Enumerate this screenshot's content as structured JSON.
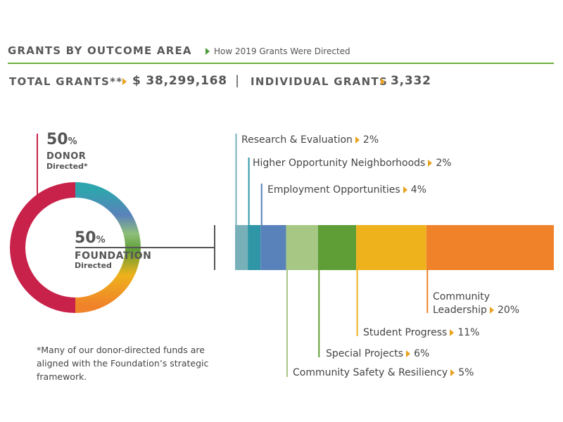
{
  "header": {
    "title": "GRANTS BY OUTCOME AREA",
    "subtitle": "How 2019 Grants Were Directed"
  },
  "totals": {
    "total_label": "TOTAL GRANTS**",
    "total_value": "$ 38,299,168",
    "separator": "|",
    "individual_label": "INDIVIDUAL GRANTS",
    "individual_value": "3,332"
  },
  "footnote": "*Many of our donor-directed funds are aligned with the Foundation’s strategic framework.",
  "chart_data": [
    {
      "type": "pie",
      "style": "donut",
      "slices": [
        {
          "label": "DONOR Directed*",
          "value": 50,
          "display": "50",
          "unit": "%",
          "line1": "DONOR",
          "line2": "Directed*",
          "color": "#c8224a"
        },
        {
          "label": "FOUNDATION Directed",
          "value": 50,
          "display": "50",
          "unit": "%",
          "line1": "FOUNDATION",
          "line2": "Directed",
          "color": "#5aa6b2"
        }
      ]
    },
    {
      "type": "bar",
      "orientation": "stacked-horizontal",
      "categories": [
        "Research & Evaluation",
        "Higher Opportunity Neighborhoods",
        "Employment Opportunities",
        "Community Safety & Resiliency",
        "Special Projects",
        "Student Progress",
        "Community Leadership"
      ],
      "values": [
        2,
        2,
        4,
        5,
        6,
        11,
        20
      ],
      "labels": [
        "2%",
        "2%",
        "4%",
        "5%",
        "6%",
        "11%",
        "20%"
      ],
      "colors": [
        "#78b0ba",
        "#2e96a6",
        "#5a82ba",
        "#a7c785",
        "#5f9e36",
        "#eeb21c",
        "#f0832a"
      ]
    }
  ]
}
